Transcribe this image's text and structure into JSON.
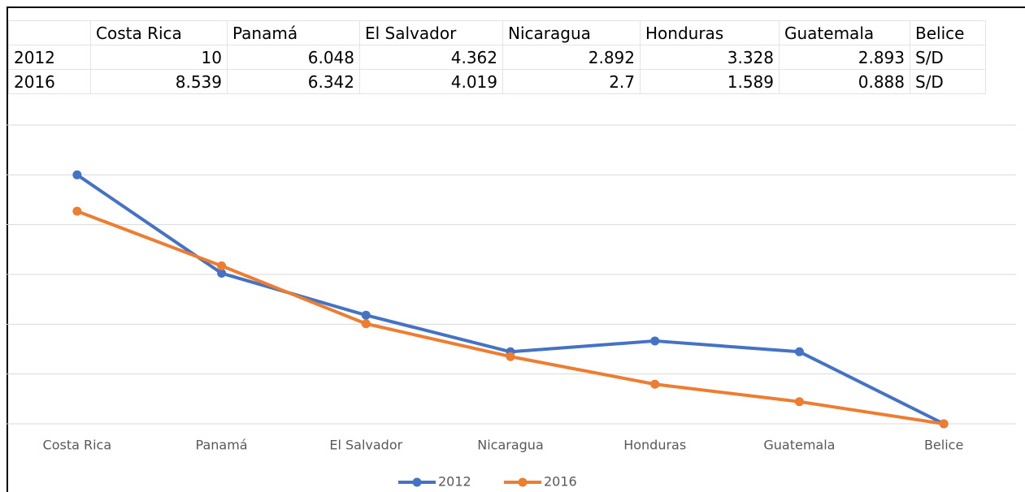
{
  "table": {
    "header": [
      "",
      "Costa Rica",
      "Panamá",
      "El Salvador",
      "Nicaragua",
      "Honduras",
      "Guatemala",
      "Belice"
    ],
    "rows": [
      [
        "2012",
        "10",
        "6.048",
        "4.362",
        "2.892",
        "3.328",
        "2.893",
        "S/D"
      ],
      [
        "2016",
        "8.539",
        "6.342",
        "4.019",
        "2.7",
        "1.589",
        "0.888",
        "S/D"
      ]
    ]
  },
  "chart_data": {
    "type": "line",
    "categories": [
      "Costa Rica",
      "Panamá",
      "El Salvador",
      "Nicaragua",
      "Honduras",
      "Guatemala",
      "Belice"
    ],
    "series": [
      {
        "name": "2012",
        "color": "#4472c4",
        "values": [
          10,
          6.048,
          4.362,
          2.892,
          3.328,
          2.893,
          0
        ]
      },
      {
        "name": "2016",
        "color": "#ed7d31",
        "values": [
          8.539,
          6.342,
          4.019,
          2.7,
          1.589,
          0.888,
          0
        ]
      }
    ],
    "ylim": [
      0,
      12
    ],
    "yticks": [
      0,
      2,
      4,
      6,
      8,
      10,
      12
    ],
    "grid": true,
    "legend": "bottom"
  }
}
